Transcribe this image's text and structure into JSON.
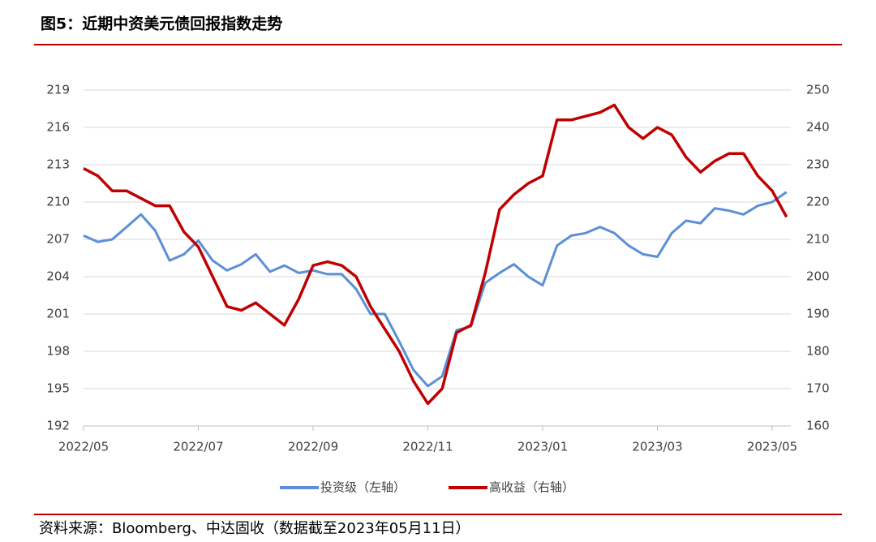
{
  "chart_data": {
    "type": "line",
    "title": "图5：近期中资美元债回报指数走势",
    "source": "资料来源：Bloomberg、中达固收（数据截至2023年05月11日）",
    "categories": [
      "2022/05",
      null,
      null,
      null,
      null,
      null,
      null,
      null,
      "2022/07",
      null,
      null,
      null,
      null,
      null,
      null,
      null,
      "2022/09",
      null,
      null,
      null,
      null,
      null,
      null,
      null,
      "2022/11",
      null,
      null,
      null,
      null,
      null,
      null,
      null,
      "2023/01",
      null,
      null,
      null,
      null,
      null,
      null,
      null,
      "2023/03",
      null,
      null,
      null,
      null,
      null,
      null,
      null,
      "2023/05",
      null
    ],
    "series": [
      {
        "name": "投资级（左轴）",
        "color": "#5b8fd6",
        "axis": "y",
        "values": [
          207.3,
          206.8,
          207.0,
          208.0,
          209.0,
          207.7,
          205.3,
          205.8,
          206.9,
          205.3,
          204.5,
          205.0,
          205.8,
          204.4,
          204.9,
          204.3,
          204.5,
          204.2,
          204.2,
          203.0,
          201.0,
          201.0,
          198.8,
          196.5,
          195.2,
          196.0,
          199.7,
          200.0,
          203.5,
          204.3,
          205.0,
          204.0,
          203.3,
          206.5,
          207.3,
          207.5,
          208.0,
          207.5,
          206.5,
          205.8,
          205.6,
          207.5,
          208.5,
          208.3,
          209.5,
          209.3,
          209.0,
          209.7,
          210.0,
          210.8
        ]
      },
      {
        "name": "高收益（右轴）",
        "color": "#c00000",
        "axis": "y2",
        "values": [
          229,
          227,
          223,
          223,
          221,
          219,
          219,
          212,
          208,
          200,
          192,
          191,
          193,
          190,
          187,
          194,
          203,
          204,
          203,
          200,
          192,
          186,
          180,
          172,
          166,
          170,
          185,
          187,
          201,
          218,
          222,
          225,
          227,
          242,
          242,
          243,
          244,
          246,
          240,
          237,
          240,
          238,
          232,
          228,
          231,
          233,
          233,
          227,
          223,
          216
        ]
      }
    ],
    "ylim": [
      192,
      219
    ],
    "yticks": [
      192,
      195,
      198,
      201,
      204,
      207,
      210,
      213,
      216,
      219
    ],
    "y2lim": [
      160,
      250
    ],
    "y2ticks": [
      160,
      170,
      180,
      190,
      200,
      210,
      220,
      230,
      240,
      250
    ],
    "grid": true,
    "legend": "bottom"
  }
}
